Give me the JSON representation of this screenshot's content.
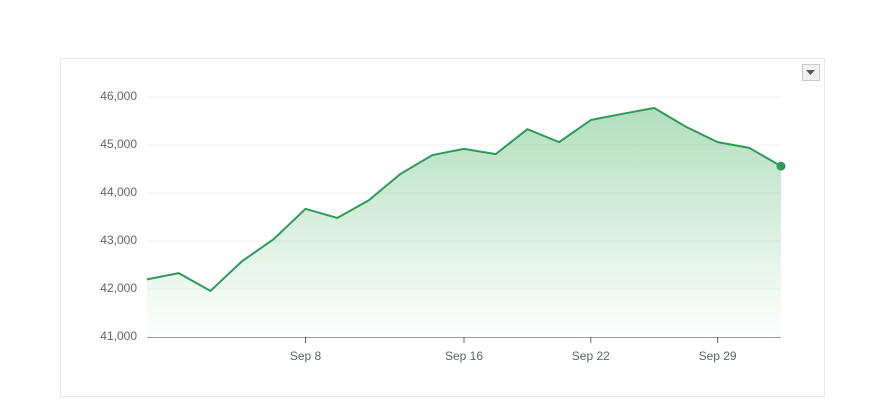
{
  "chart_data": {
    "type": "area",
    "categories": [
      null,
      null,
      null,
      null,
      null,
      "Sep 8",
      null,
      null,
      null,
      null,
      "Sep 16",
      null,
      null,
      null,
      "Sep 22",
      null,
      null,
      null,
      "Sep 29",
      null,
      null
    ],
    "values": [
      42200,
      42330,
      41960,
      42580,
      43040,
      43670,
      43480,
      43850,
      44400,
      44790,
      44920,
      44810,
      45330,
      45060,
      45520,
      45650,
      45770,
      45380,
      45060,
      44940,
      44560
    ],
    "color": "#2e9a57",
    "ylim": [
      41000,
      46000
    ],
    "yticks": [
      {
        "value": 41000,
        "label": "41,000"
      },
      {
        "value": 42000,
        "label": "42,000"
      },
      {
        "value": 43000,
        "label": "43,000"
      },
      {
        "value": 44000,
        "label": "44,000"
      },
      {
        "value": 45000,
        "label": "45,000"
      },
      {
        "value": 46000,
        "label": "46,000"
      }
    ],
    "grid": true
  }
}
